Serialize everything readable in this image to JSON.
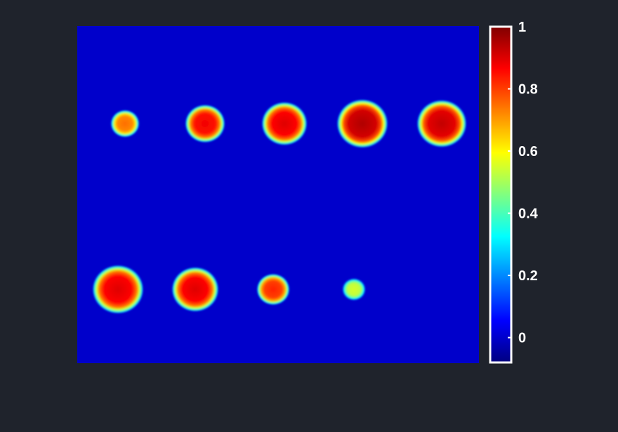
{
  "background_color": "#1f232c",
  "chart_data": {
    "type": "heatmap",
    "title": "",
    "xlabel": "",
    "ylabel": "",
    "colormap": "jet",
    "color_range": [
      -0.08,
      1.0
    ],
    "field_value": 0,
    "grid": false,
    "axes_visible": false,
    "colorbar": {
      "placement": "right",
      "ticks": [
        {
          "value": 1,
          "label": "1"
        },
        {
          "value": 0.8,
          "label": "0.8"
        },
        {
          "value": 0.6,
          "label": "0.6"
        },
        {
          "value": 0.4,
          "label": "0.4"
        },
        {
          "value": 0.2,
          "label": "0.2"
        },
        {
          "value": 0,
          "label": "0"
        }
      ]
    },
    "spots": [
      {
        "row": 1,
        "index": 1,
        "peak_value": 0.75
      },
      {
        "row": 1,
        "index": 2,
        "peak_value": 0.88
      },
      {
        "row": 1,
        "index": 3,
        "peak_value": 0.9
      },
      {
        "row": 1,
        "index": 4,
        "peak_value": 0.95
      },
      {
        "row": 1,
        "index": 5,
        "peak_value": 0.93
      },
      {
        "row": 2,
        "index": 1,
        "peak_value": 0.9
      },
      {
        "row": 2,
        "index": 2,
        "peak_value": 0.9
      },
      {
        "row": 2,
        "index": 3,
        "peak_value": 0.83
      },
      {
        "row": 2,
        "index": 4,
        "peak_value": 0.55
      }
    ]
  }
}
